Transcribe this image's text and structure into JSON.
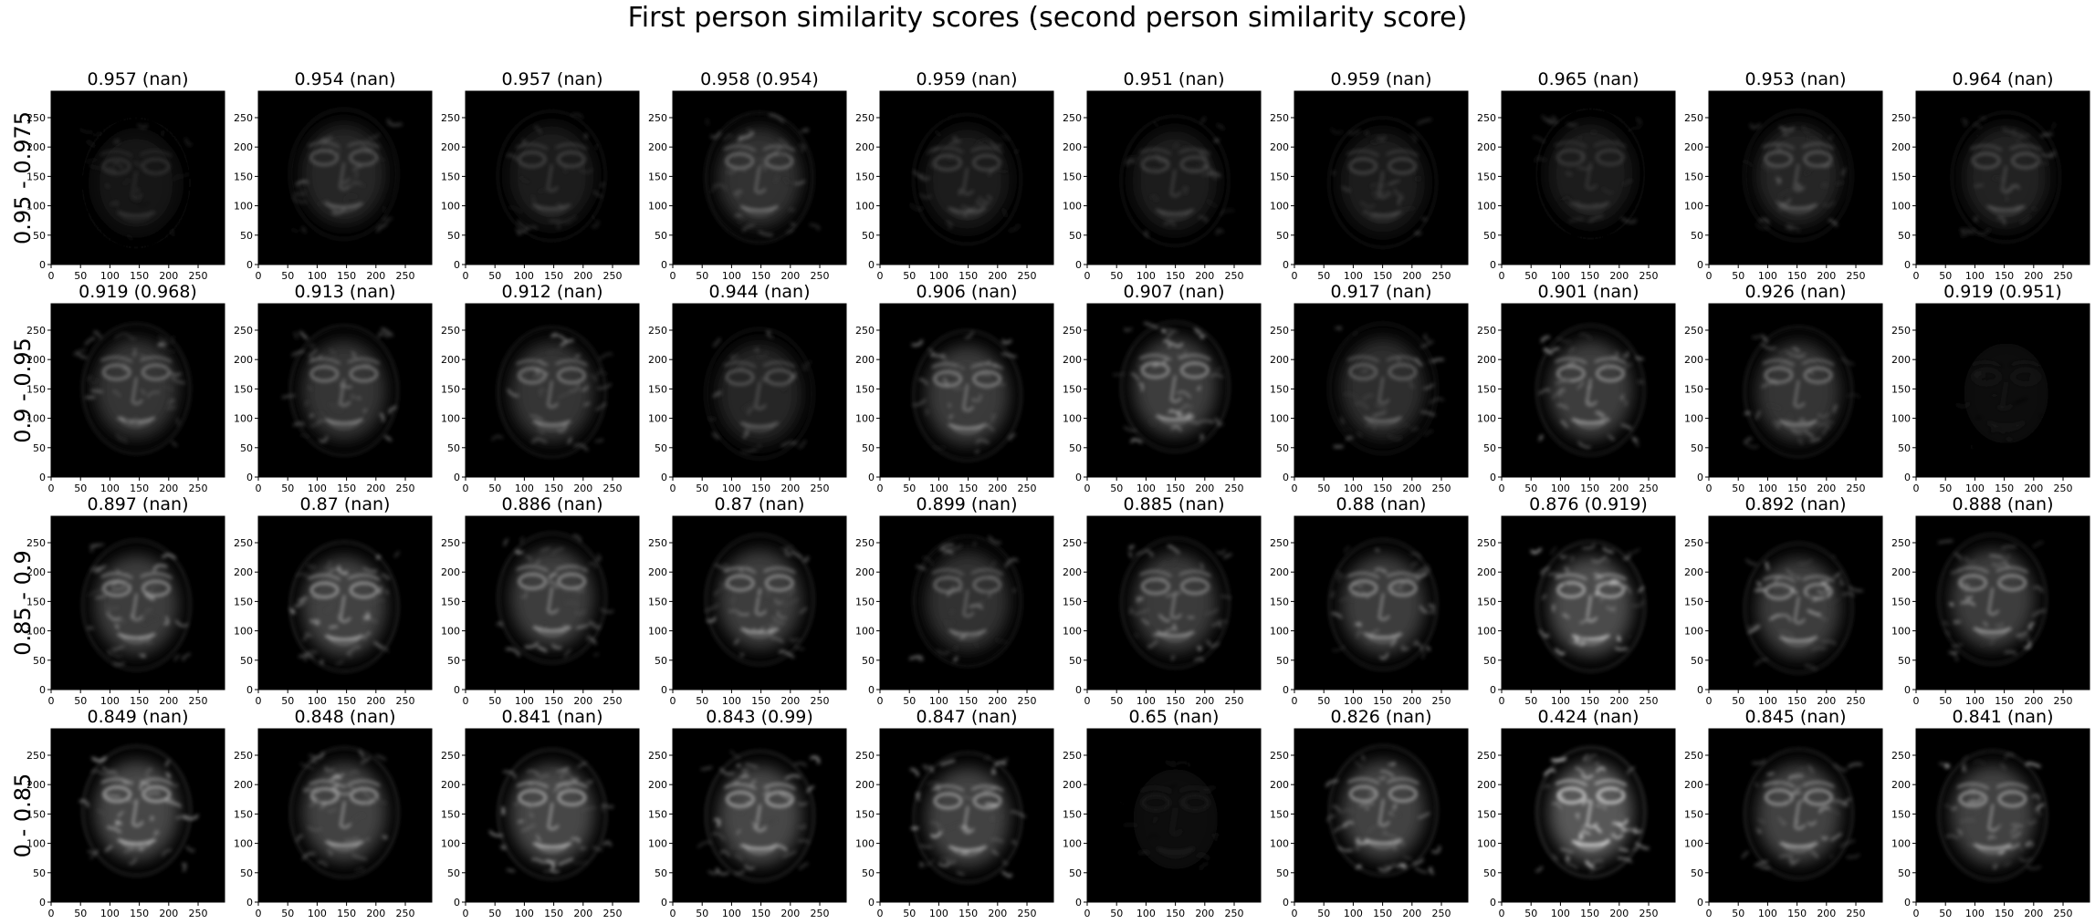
{
  "figure": {
    "title": "First person similarity scores (second person similarity score)"
  },
  "chart_data": {
    "type": "heatmap",
    "layout": "grid",
    "colormap": "gray",
    "grid_rows": 4,
    "grid_cols": 10,
    "xlim": [
      0,
      295
    ],
    "ylim": [
      295,
      0
    ],
    "x_ticks": [
      0,
      50,
      100,
      150,
      200,
      250
    ],
    "y_ticks": [
      0,
      50,
      100,
      150,
      200,
      250
    ],
    "row_labels": [
      "0.95 - 0.975",
      "0.9 - 0.95",
      "0.85 - 0.9",
      "0 - 0.85"
    ],
    "panel_titles": [
      [
        "0.957 (nan)",
        "0.954 (nan)",
        "0.957 (nan)",
        "0.958 (0.954)",
        "0.959 (nan)",
        "0.951 (nan)",
        "0.959 (nan)",
        "0.965 (nan)",
        "0.953 (nan)",
        "0.964 (nan)"
      ],
      [
        "0.919 (0.968)",
        "0.913 (nan)",
        "0.912 (nan)",
        "0.944 (nan)",
        "0.906 (nan)",
        "0.907 (nan)",
        "0.917 (nan)",
        "0.901 (nan)",
        "0.926 (nan)",
        "0.919 (0.951)"
      ],
      [
        "0.897 (nan)",
        "0.87 (nan)",
        "0.886 (nan)",
        "0.87 (nan)",
        "0.899 (nan)",
        "0.885 (nan)",
        "0.88 (nan)",
        "0.876 (0.919)",
        "0.892 (nan)",
        "0.888 (nan)"
      ],
      [
        "0.849 (nan)",
        "0.848 (nan)",
        "0.841 (nan)",
        "0.843 (0.99)",
        "0.847 (nan)",
        "0.65 (nan)",
        "0.826 (nan)",
        "0.424 (nan)",
        "0.845 (nan)",
        "0.841 (nan)"
      ]
    ],
    "first_person_scores": [
      [
        0.957,
        0.954,
        0.957,
        0.958,
        0.959,
        0.951,
        0.959,
        0.965,
        0.953,
        0.964
      ],
      [
        0.919,
        0.913,
        0.912,
        0.944,
        0.906,
        0.907,
        0.917,
        0.901,
        0.926,
        0.919
      ],
      [
        0.897,
        0.87,
        0.886,
        0.87,
        0.899,
        0.885,
        0.88,
        0.876,
        0.892,
        0.888
      ],
      [
        0.849,
        0.848,
        0.841,
        0.843,
        0.847,
        0.65,
        0.826,
        0.424,
        0.845,
        0.841
      ]
    ],
    "second_person_scores": [
      [
        null,
        null,
        null,
        0.954,
        null,
        null,
        null,
        null,
        null,
        null
      ],
      [
        0.968,
        null,
        null,
        null,
        null,
        null,
        null,
        null,
        null,
        0.951
      ],
      [
        null,
        null,
        null,
        null,
        null,
        null,
        null,
        0.919,
        null,
        null
      ],
      [
        null,
        null,
        null,
        0.99,
        null,
        null,
        null,
        null,
        null,
        null
      ]
    ],
    "panel_brightness": [
      [
        0.25,
        0.45,
        0.35,
        0.55,
        0.35,
        0.35,
        0.35,
        0.3,
        0.45,
        0.4
      ],
      [
        0.6,
        0.6,
        0.6,
        0.45,
        0.65,
        0.7,
        0.5,
        0.7,
        0.6,
        0.12
      ],
      [
        0.7,
        0.75,
        0.7,
        0.7,
        0.55,
        0.65,
        0.7,
        0.85,
        0.7,
        0.7
      ],
      [
        0.8,
        0.75,
        0.8,
        0.8,
        0.75,
        0.15,
        0.75,
        1.0,
        0.75,
        0.75
      ]
    ]
  }
}
